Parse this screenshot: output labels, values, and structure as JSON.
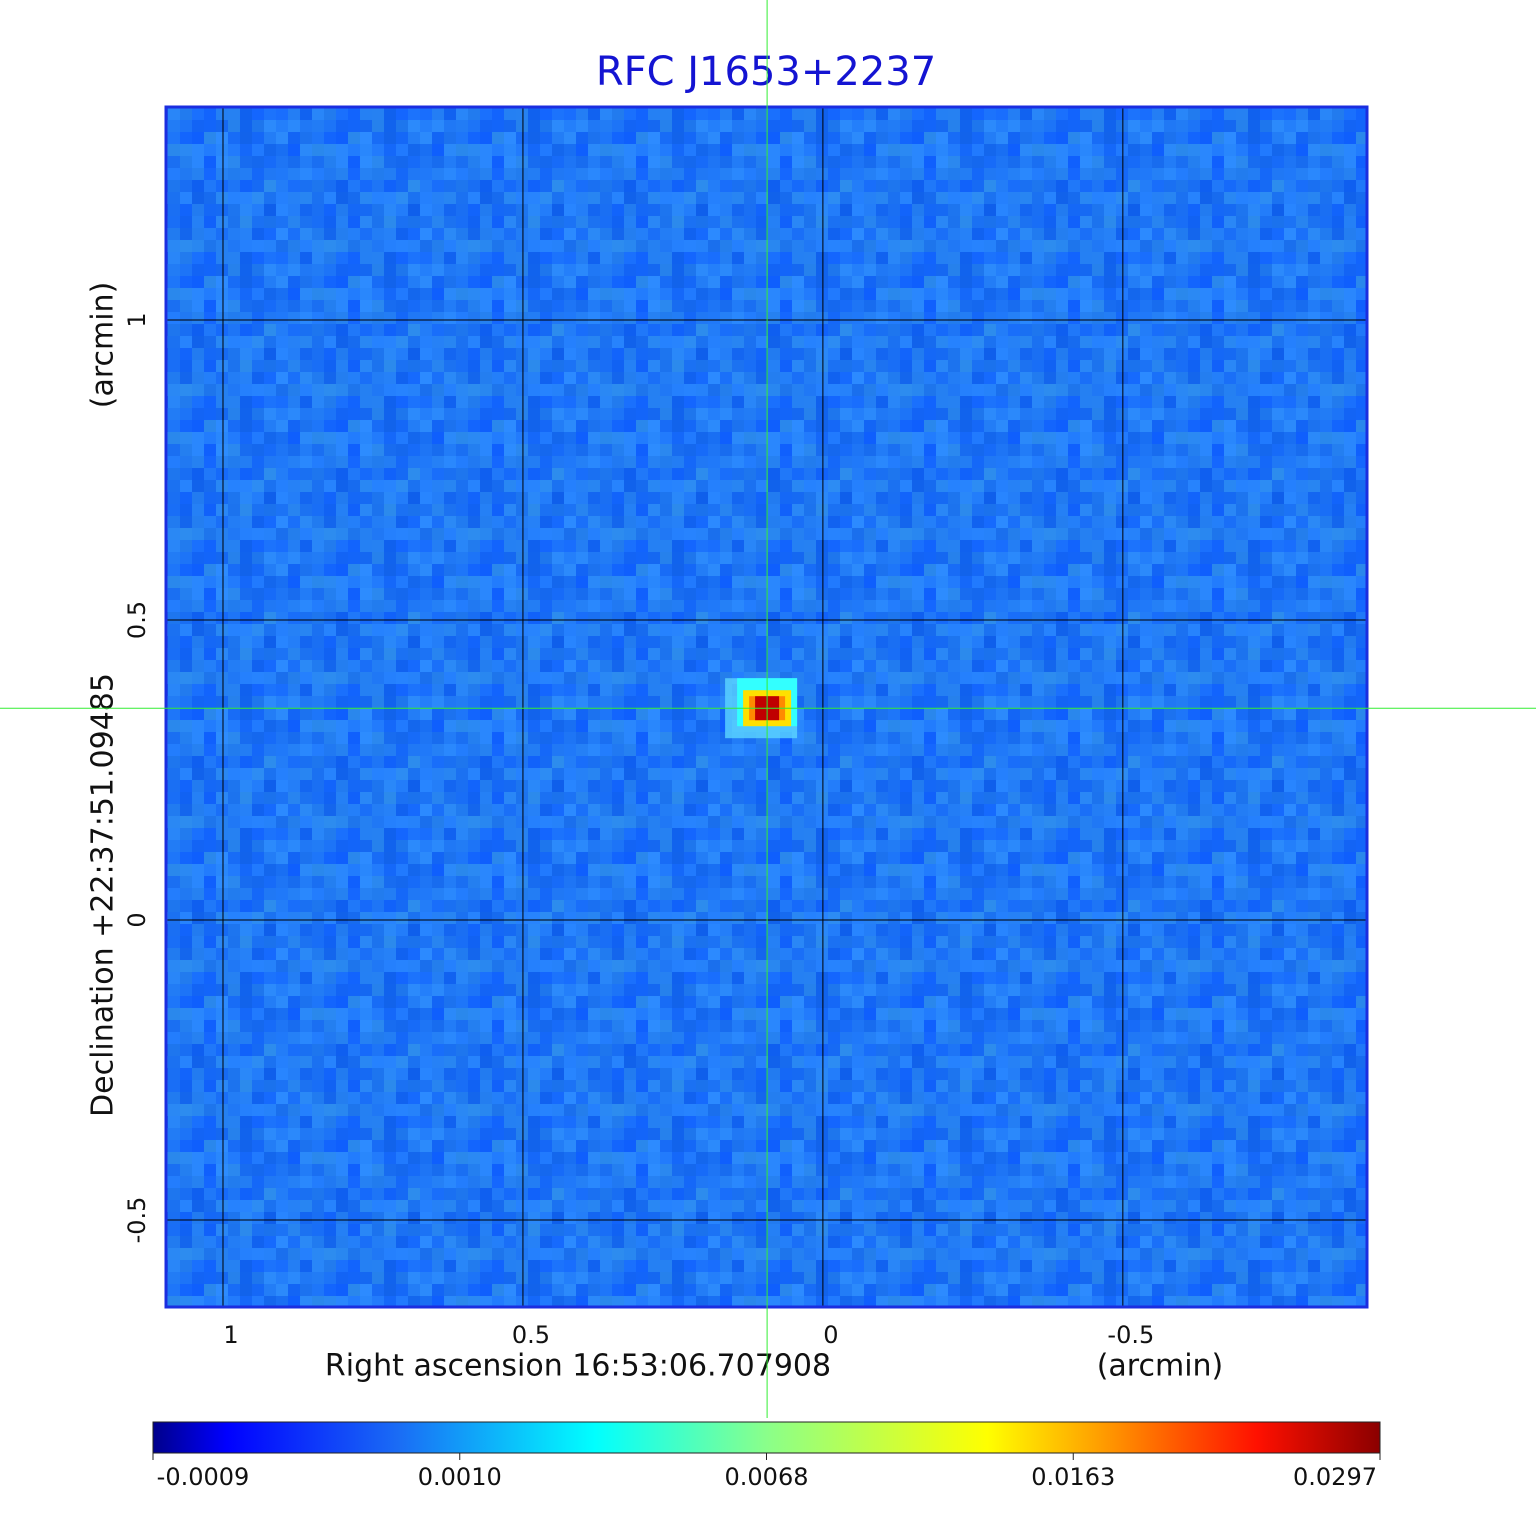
{
  "chart_data": {
    "type": "image",
    "title": "RFC J1653+2237",
    "xlabel": "Right ascension  16:53:06.707908",
    "xunit": "(arcmin)",
    "ylabel": "Declination  +22:37:51.09485",
    "yunit": "(arcmin)",
    "xlim": [
      1.095,
      -0.907
    ],
    "ylim": [
      -0.645,
      1.355
    ],
    "xticks": [
      1.0,
      0.5,
      0.0,
      -0.5
    ],
    "yticks": [
      1.0,
      0.5,
      0.0,
      -0.5
    ],
    "grid": true,
    "marker": {
      "x": 0.093,
      "y": 0.353,
      "color": "#33ee33"
    },
    "peak": 0.0297,
    "colorbar_ticks": [
      -0.0009,
      {
        "value": 0.001,
        "label": "0.0010"
      },
      0.0068,
      0.0163,
      0.0297
    ],
    "title_color": "#1414d2",
    "frame_color": "#1b2ee0"
  }
}
